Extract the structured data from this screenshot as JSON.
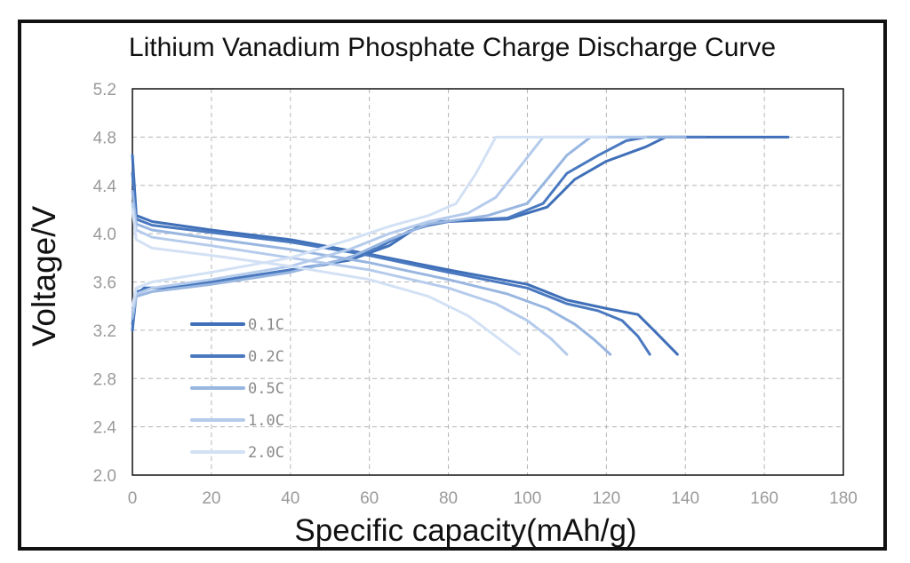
{
  "chart_data": {
    "type": "line",
    "title": "Lithium Vanadium Phosphate Charge Discharge Curve",
    "xlabel": "Specific capacity(mAh/g)",
    "ylabel": "Voltage/V",
    "xlim": [
      0,
      180
    ],
    "ylim": [
      2.0,
      5.2
    ],
    "xticks": [
      "0",
      "20",
      "40",
      "60",
      "80",
      "100",
      "120",
      "140",
      "160",
      "180"
    ],
    "yticks": [
      "2.0",
      "2.4",
      "2.8",
      "3.2",
      "3.6",
      "4.0",
      "4.4",
      "4.8",
      "5.2"
    ],
    "grid": true,
    "legend_position": "bottom-left",
    "series": [
      {
        "name": "0.1C",
        "color": "#3f6fb8",
        "charge": [
          [
            0,
            3.2
          ],
          [
            1,
            3.5
          ],
          [
            3,
            3.55
          ],
          [
            10,
            3.55
          ],
          [
            20,
            3.6
          ],
          [
            40,
            3.7
          ],
          [
            55,
            3.78
          ],
          [
            65,
            3.9
          ],
          [
            72,
            4.05
          ],
          [
            80,
            4.1
          ],
          [
            95,
            4.12
          ],
          [
            105,
            4.22
          ],
          [
            112,
            4.45
          ],
          [
            120,
            4.6
          ],
          [
            130,
            4.72
          ],
          [
            135,
            4.8
          ],
          [
            150,
            4.8
          ],
          [
            166,
            4.8
          ]
        ],
        "discharge": [
          [
            0,
            4.65
          ],
          [
            1,
            4.15
          ],
          [
            5,
            4.1
          ],
          [
            20,
            4.03
          ],
          [
            40,
            3.95
          ],
          [
            60,
            3.83
          ],
          [
            80,
            3.7
          ],
          [
            100,
            3.58
          ],
          [
            110,
            3.45
          ],
          [
            120,
            3.38
          ],
          [
            128,
            3.33
          ],
          [
            132,
            3.2
          ],
          [
            138,
            3.0
          ]
        ]
      },
      {
        "name": "0.2C",
        "color": "#4a79c0",
        "charge": [
          [
            0,
            3.25
          ],
          [
            1,
            3.52
          ],
          [
            5,
            3.55
          ],
          [
            15,
            3.57
          ],
          [
            30,
            3.65
          ],
          [
            50,
            3.75
          ],
          [
            62,
            3.88
          ],
          [
            70,
            4.02
          ],
          [
            78,
            4.1
          ],
          [
            95,
            4.13
          ],
          [
            104,
            4.25
          ],
          [
            110,
            4.5
          ],
          [
            118,
            4.65
          ],
          [
            125,
            4.77
          ],
          [
            130,
            4.8
          ],
          [
            145,
            4.8
          ]
        ],
        "discharge": [
          [
            0,
            4.5
          ],
          [
            1,
            4.12
          ],
          [
            5,
            4.07
          ],
          [
            20,
            4.01
          ],
          [
            40,
            3.93
          ],
          [
            60,
            3.82
          ],
          [
            80,
            3.68
          ],
          [
            100,
            3.55
          ],
          [
            110,
            3.42
          ],
          [
            118,
            3.36
          ],
          [
            124,
            3.28
          ],
          [
            128,
            3.15
          ],
          [
            131,
            3.0
          ]
        ]
      },
      {
        "name": "0.5C",
        "color": "#98b6e0",
        "charge": [
          [
            0,
            3.3
          ],
          [
            1,
            3.48
          ],
          [
            5,
            3.52
          ],
          [
            20,
            3.58
          ],
          [
            40,
            3.68
          ],
          [
            55,
            3.8
          ],
          [
            65,
            3.95
          ],
          [
            75,
            4.08
          ],
          [
            90,
            4.15
          ],
          [
            100,
            4.25
          ],
          [
            105,
            4.45
          ],
          [
            110,
            4.65
          ],
          [
            116,
            4.8
          ],
          [
            140,
            4.8
          ]
        ],
        "discharge": [
          [
            0,
            4.35
          ],
          [
            1,
            4.08
          ],
          [
            5,
            4.03
          ],
          [
            20,
            3.96
          ],
          [
            40,
            3.87
          ],
          [
            60,
            3.76
          ],
          [
            80,
            3.62
          ],
          [
            95,
            3.5
          ],
          [
            105,
            3.38
          ],
          [
            112,
            3.25
          ],
          [
            117,
            3.12
          ],
          [
            121,
            3.0
          ]
        ]
      },
      {
        "name": "1.0C",
        "color": "#b5cbec",
        "charge": [
          [
            0,
            3.35
          ],
          [
            1,
            3.5
          ],
          [
            5,
            3.55
          ],
          [
            20,
            3.62
          ],
          [
            40,
            3.73
          ],
          [
            55,
            3.87
          ],
          [
            65,
            4.0
          ],
          [
            75,
            4.1
          ],
          [
            85,
            4.17
          ],
          [
            92,
            4.3
          ],
          [
            98,
            4.55
          ],
          [
            104,
            4.8
          ],
          [
            130,
            4.8
          ]
        ],
        "discharge": [
          [
            0,
            4.25
          ],
          [
            1,
            4.03
          ],
          [
            5,
            3.97
          ],
          [
            20,
            3.9
          ],
          [
            40,
            3.8
          ],
          [
            60,
            3.7
          ],
          [
            80,
            3.55
          ],
          [
            92,
            3.42
          ],
          [
            100,
            3.28
          ],
          [
            106,
            3.13
          ],
          [
            110,
            3.0
          ]
        ]
      },
      {
        "name": "2.0C",
        "color": "#d3e1f5",
        "charge": [
          [
            0,
            3.4
          ],
          [
            1,
            3.55
          ],
          [
            5,
            3.6
          ],
          [
            20,
            3.68
          ],
          [
            40,
            3.8
          ],
          [
            55,
            3.95
          ],
          [
            65,
            4.06
          ],
          [
            75,
            4.15
          ],
          [
            82,
            4.25
          ],
          [
            87,
            4.5
          ],
          [
            92,
            4.8
          ],
          [
            120,
            4.8
          ]
        ],
        "discharge": [
          [
            0,
            4.2
          ],
          [
            1,
            3.95
          ],
          [
            5,
            3.88
          ],
          [
            20,
            3.82
          ],
          [
            40,
            3.73
          ],
          [
            60,
            3.62
          ],
          [
            75,
            3.48
          ],
          [
            85,
            3.32
          ],
          [
            92,
            3.15
          ],
          [
            98,
            3.0
          ]
        ]
      }
    ]
  }
}
